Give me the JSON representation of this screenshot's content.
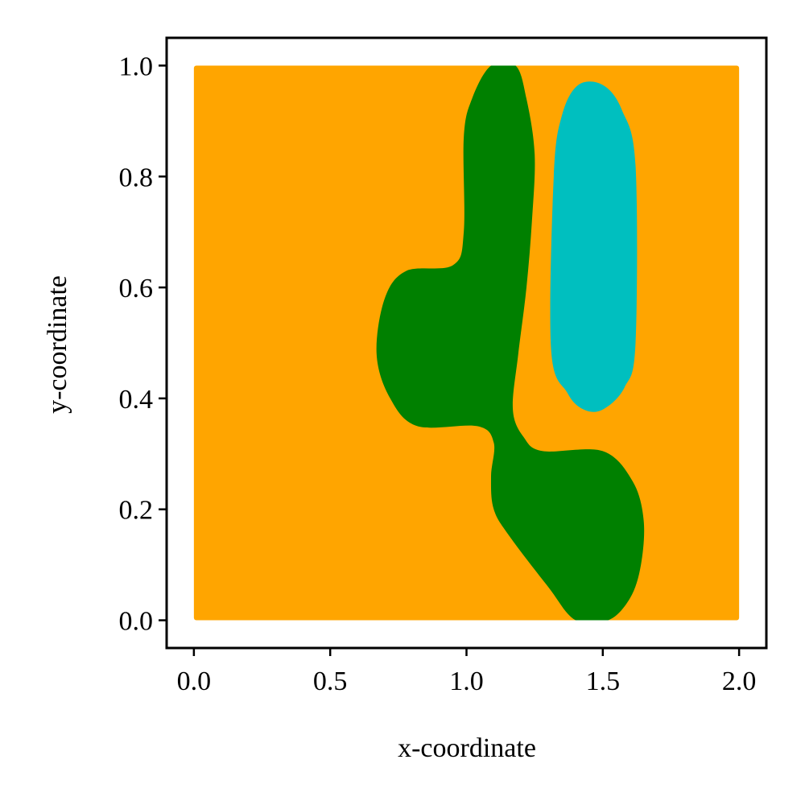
{
  "chart_data": {
    "type": "heatmap",
    "title": "",
    "xlabel": "x-coordinate",
    "ylabel": "y-coordinate",
    "xlim": [
      -0.1,
      2.1
    ],
    "ylim": [
      -0.05,
      1.05
    ],
    "domain": {
      "x": [
        0.0,
        2.0
      ],
      "y": [
        0.0,
        1.0
      ]
    },
    "x_ticks": [
      {
        "value": 0.0,
        "label": "0.0"
      },
      {
        "value": 0.5,
        "label": "0.5"
      },
      {
        "value": 1.0,
        "label": "1.0"
      },
      {
        "value": 1.5,
        "label": "1.5"
      },
      {
        "value": 2.0,
        "label": "2.0"
      }
    ],
    "y_ticks": [
      {
        "value": 0.0,
        "label": "0.0"
      },
      {
        "value": 0.2,
        "label": "0.2"
      },
      {
        "value": 0.4,
        "label": "0.4"
      },
      {
        "value": 0.6,
        "label": "0.6"
      },
      {
        "value": 0.8,
        "label": "0.8"
      },
      {
        "value": 1.0,
        "label": "1.0"
      }
    ],
    "grid": false,
    "legend": "none",
    "colors": {
      "background": "#ffa500",
      "region_a": "#008000",
      "region_b": "#00bfbf"
    },
    "regions": [
      {
        "color_key": "region_a",
        "outline": [
          [
            1.09,
            1.0
          ],
          [
            1.18,
            1.0
          ],
          [
            1.22,
            0.94
          ],
          [
            1.25,
            0.84
          ],
          [
            1.24,
            0.72
          ],
          [
            1.22,
            0.6
          ],
          [
            1.19,
            0.48
          ],
          [
            1.17,
            0.38
          ],
          [
            1.21,
            0.33
          ],
          [
            1.28,
            0.305
          ],
          [
            1.5,
            0.305
          ],
          [
            1.61,
            0.25
          ],
          [
            1.65,
            0.18
          ],
          [
            1.64,
            0.1
          ],
          [
            1.6,
            0.04
          ],
          [
            1.52,
            0.0
          ],
          [
            1.4,
            0.0
          ],
          [
            1.3,
            0.06
          ],
          [
            1.16,
            0.15
          ],
          [
            1.1,
            0.2
          ],
          [
            1.09,
            0.26
          ],
          [
            1.1,
            0.32
          ],
          [
            1.04,
            0.35
          ],
          [
            0.82,
            0.35
          ],
          [
            0.72,
            0.4
          ],
          [
            0.67,
            0.48
          ],
          [
            0.7,
            0.58
          ],
          [
            0.78,
            0.63
          ],
          [
            0.95,
            0.64
          ],
          [
            0.99,
            0.7
          ],
          [
            0.99,
            0.87
          ],
          [
            1.02,
            0.94
          ]
        ]
      },
      {
        "color_key": "region_b",
        "outline": [
          [
            1.41,
            0.965
          ],
          [
            1.5,
            0.965
          ],
          [
            1.57,
            0.92
          ],
          [
            1.62,
            0.82
          ],
          [
            1.62,
            0.5
          ],
          [
            1.58,
            0.42
          ],
          [
            1.5,
            0.38
          ],
          [
            1.43,
            0.38
          ],
          [
            1.37,
            0.41
          ],
          [
            1.31,
            0.49
          ],
          [
            1.32,
            0.8
          ],
          [
            1.35,
            0.91
          ]
        ]
      }
    ]
  }
}
